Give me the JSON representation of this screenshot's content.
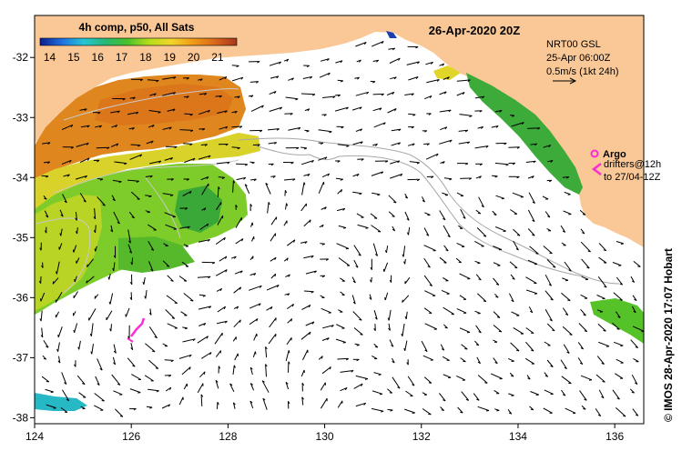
{
  "map": {
    "title": "26-Apr-2020 20Z",
    "colorbar": {
      "label": "4h comp, p50, All Sats",
      "ticks": [
        "14",
        "15",
        "16",
        "17",
        "18",
        "19",
        "20",
        "21"
      ],
      "min": 13.6,
      "max": 21.8,
      "stops": [
        "#0b1f8c",
        "#1f6fe0",
        "#25c6d6",
        "#27b873",
        "#48c22a",
        "#b8dc1c",
        "#f1d52a",
        "#f19a18",
        "#d9681a",
        "#a8361a"
      ]
    },
    "legend": {
      "source": "NRT00 GSL",
      "time": "25-Apr 06:00Z",
      "scale": "0.5m/s (1kt 24h)"
    },
    "argo": {
      "label": "Argo",
      "drifters_line1": "drifters@12h",
      "drifters_line2": "to 27/04-12Z",
      "color": "#ff2bd4"
    },
    "credit": "© IMOS 28-Apr-2020 17:07 Hobart",
    "axes": {
      "x_ticks": [
        "124",
        "126",
        "128",
        "130",
        "132",
        "134",
        "136"
      ],
      "y_ticks": [
        "-32",
        "-33",
        "-34",
        "-35",
        "-36",
        "-37",
        "-38"
      ],
      "lon_range": [
        124,
        136.6
      ],
      "lat_range": [
        -31.3,
        -38.1
      ]
    },
    "colors": {
      "land": "#f9c896",
      "sea": "#ffffff",
      "warm_sst": "#e0861e",
      "mid_sst": "#7dcc29",
      "contour": "#a9a9a9"
    }
  }
}
